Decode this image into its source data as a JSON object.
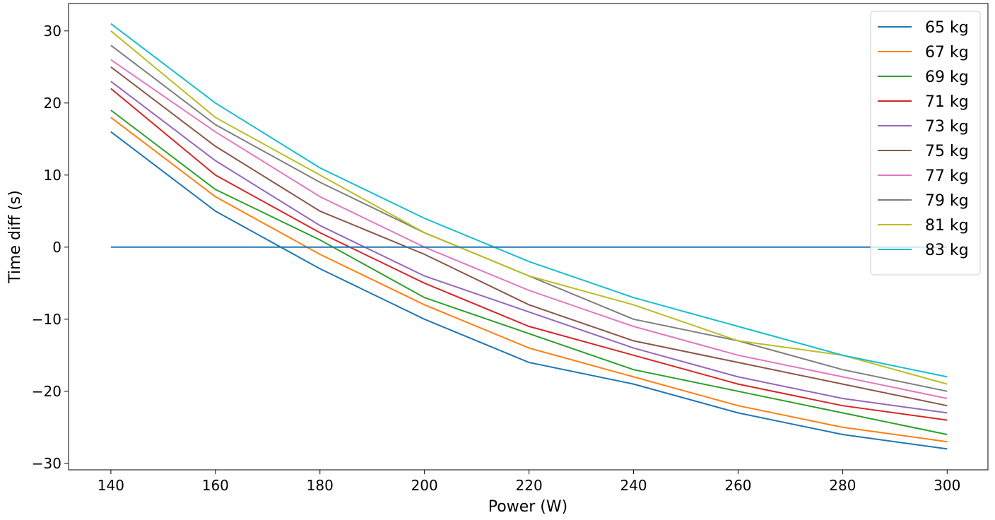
{
  "chart_data": {
    "type": "line",
    "title": "",
    "xlabel": "Power (W)",
    "ylabel": "Time diff (s)",
    "xlim": [
      131.9,
      307.8
    ],
    "ylim": [
      -30.9,
      33.8
    ],
    "xticks": [
      140,
      160,
      180,
      200,
      220,
      240,
      260,
      280,
      300
    ],
    "yticks": [
      -30,
      -20,
      -10,
      0,
      10,
      20,
      30
    ],
    "ytick_labels": [
      "−30",
      "−20",
      "−10",
      "0",
      "10",
      "20",
      "30"
    ],
    "grid": false,
    "legend_position": "top-right",
    "x": [
      140,
      160,
      180,
      200,
      220,
      240,
      260,
      280,
      300
    ],
    "series": [
      {
        "name": "65 kg",
        "color": "#1f77b4",
        "values": [
          16,
          5,
          -3,
          -10,
          -16,
          -19,
          -23,
          -26,
          -28
        ]
      },
      {
        "name": "67 kg",
        "color": "#ff7f0e",
        "values": [
          18,
          7,
          -1,
          -8,
          -14,
          -18,
          -22,
          -25,
          -27
        ]
      },
      {
        "name": "69 kg",
        "color": "#2ca02c",
        "values": [
          19,
          8,
          1,
          -7,
          -12,
          -17,
          -20,
          -23,
          -26
        ]
      },
      {
        "name": "71 kg",
        "color": "#d62728",
        "values": [
          22,
          10,
          2,
          -5,
          -11,
          -15,
          -19,
          -22,
          -24
        ]
      },
      {
        "name": "73 kg",
        "color": "#9467bd",
        "values": [
          23,
          12,
          3,
          -4,
          -9,
          -14,
          -18,
          -21,
          -23
        ]
      },
      {
        "name": "75 kg",
        "color": "#8c564b",
        "values": [
          25,
          14,
          5,
          -1,
          -8,
          -13,
          -16,
          -19,
          -22
        ]
      },
      {
        "name": "77 kg",
        "color": "#e377c2",
        "values": [
          26,
          16,
          7,
          0,
          -6,
          -11,
          -15,
          -18,
          -21
        ]
      },
      {
        "name": "79 kg",
        "color": "#7f7f7f",
        "values": [
          28,
          17,
          9,
          2,
          -4,
          -10,
          -13,
          -17,
          -20
        ]
      },
      {
        "name": "81 kg",
        "color": "#bcbd22",
        "values": [
          30,
          18,
          10,
          2,
          -4,
          -8,
          -13,
          -15,
          -19
        ]
      },
      {
        "name": "83 kg",
        "color": "#17becf",
        "values": [
          31,
          20,
          11,
          4,
          -2,
          -7,
          -11,
          -15,
          -18
        ]
      }
    ],
    "reference_line": {
      "y": 0,
      "x_range": [
        140,
        300
      ],
      "color": "#1f77b4"
    }
  }
}
